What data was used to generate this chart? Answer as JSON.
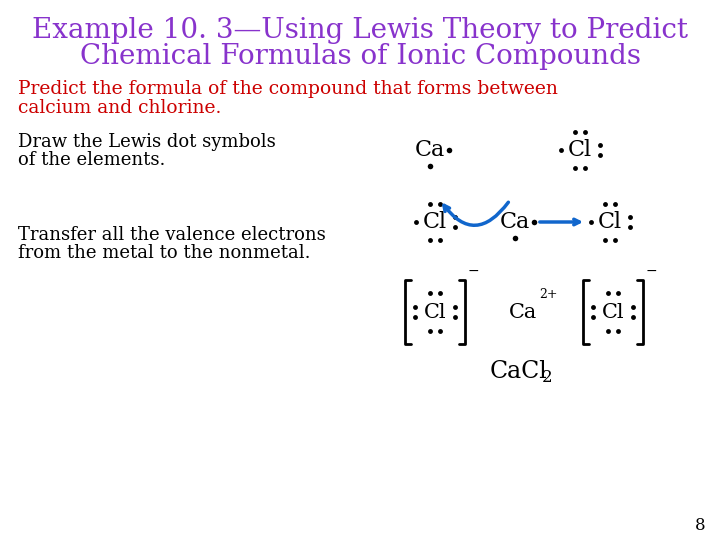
{
  "title_line1": "Example 10. 3—Using Lewis Theory to Predict",
  "title_line2": "Chemical Formulas of Ionic Compounds",
  "title_color": "#8833CC",
  "subtitle_line1": "Predict the formula of the compound that forms between",
  "subtitle_line2": "calcium and chlorine.",
  "subtitle_color": "#CC0000",
  "text1_line1": "Draw the Lewis dot symbols",
  "text1_line2": "of the elements.",
  "text2_line1": "Transfer all the valence electrons",
  "text2_line2": "from the metal to the nonmetal.",
  "page_number": "8",
  "bg_color": "#FFFFFF",
  "text_color": "#000000",
  "arrow_color": "#1166CC",
  "dot_color": "#000000"
}
